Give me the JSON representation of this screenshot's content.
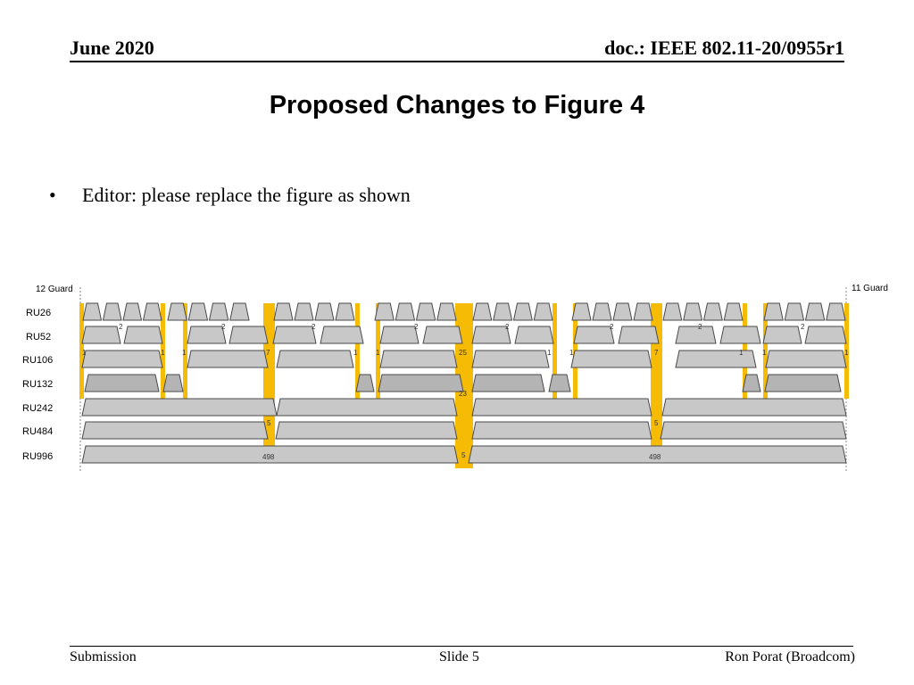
{
  "header": {
    "left": "June 2020",
    "right": "doc.: IEEE 802.11-20/0955r1"
  },
  "title": "Proposed Changes to Figure 4",
  "bullet": {
    "marker": "•",
    "text": "Editor: please replace the figure as shown"
  },
  "figure": {
    "guard_left": "12 Guard",
    "guard_right": "11 Guard",
    "rows": [
      "RU26",
      "RU52",
      "RU106",
      "RU132",
      "RU242",
      "RU484",
      "RU996"
    ],
    "tone_labels": {
      "ru52_gap": "2",
      "ru106_gap_small": "1",
      "ru106_gap_mid": "7",
      "ru106_gap_center": "25",
      "ru242_center": "23",
      "ru484_gap": "5",
      "ru996_center": "5",
      "ru996_value": "498"
    },
    "colors": {
      "ru_fill": "#c8c8c8",
      "ru_stroke": "#4a4a4a",
      "ru132_fill": "#b4b4b4",
      "tone_fill": "#f6bc05"
    }
  },
  "footer": {
    "left": "Submission",
    "center": "Slide 5",
    "right": "Ron Porat (Broadcom)"
  }
}
